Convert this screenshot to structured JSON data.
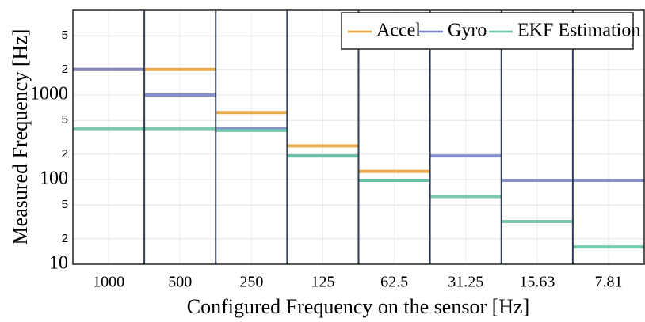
{
  "chart_data": {
    "type": "line",
    "log_y": true,
    "grid": true,
    "legend": "top-right",
    "xlabel": "Configured Frequency on the sensor [Hz]",
    "ylabel": "Measured Frequency [Hz]",
    "categories": [
      "1000",
      "500",
      "250",
      "125",
      "62.5",
      "31.25",
      "15.63",
      "7.81"
    ],
    "ylim": [
      10,
      10000
    ],
    "yticks": [
      10,
      {
        "value": 20,
        "label": "2"
      },
      {
        "value": 50,
        "label": "5"
      },
      100,
      {
        "value": 200,
        "label": "2"
      },
      {
        "value": 500,
        "label": "5"
      },
      1000,
      {
        "value": 2000,
        "label": "2"
      },
      {
        "value": 5000,
        "label": "5"
      }
    ],
    "series": [
      {
        "name": "Accel",
        "color": "#e8a33a",
        "values": [
          2000,
          2000,
          620,
          250,
          125,
          null,
          null,
          null
        ]
      },
      {
        "name": "Gyro",
        "color": "#7b83c6",
        "values": [
          2000,
          1000,
          400,
          190,
          98,
          190,
          98,
          98
        ]
      },
      {
        "name": "EKF Estimation",
        "color": "#6cc5a5",
        "values": [
          400,
          400,
          380,
          190,
          98,
          63,
          32,
          16
        ]
      }
    ]
  }
}
